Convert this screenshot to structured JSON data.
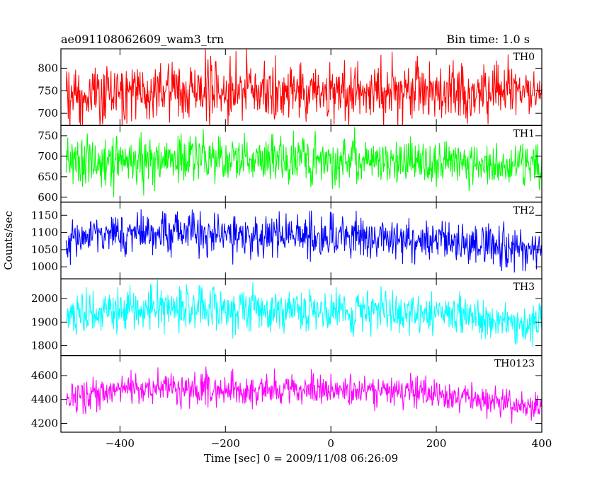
{
  "header": {
    "left": "ae091108062609_wam3_trn",
    "right": "Bin time: 1.0 s"
  },
  "chart_data": {
    "type": "line",
    "xlabel": "Time [sec] 0 = 2009/11/08 06:26:09",
    "ylabel": "Counts/sec",
    "xlim": [
      -512,
      400
    ],
    "xticks": [
      -400,
      -200,
      0,
      200,
      400
    ],
    "xtick_labels": [
      "−400",
      "−200",
      "0",
      "200",
      "400"
    ],
    "x_start": -502,
    "x_end": 400,
    "bin_time_s": 1.0,
    "panels": [
      {
        "name": "TH0",
        "color": "#ff0000",
        "ylim": [
          673,
          843
        ],
        "yticks": [
          700,
          750,
          800
        ],
        "series_x": [
          -500,
          -400,
          -300,
          -200,
          -100,
          0,
          100,
          200,
          300,
          400
        ],
        "series_mean": [
          740,
          748,
          752,
          748,
          750,
          748,
          752,
          750,
          748,
          740
        ],
        "series_spread": [
          32,
          35,
          35,
          33,
          34,
          34,
          35,
          33,
          33,
          30
        ]
      },
      {
        "name": "TH1",
        "color": "#00ff00",
        "ylim": [
          588,
          775
        ],
        "yticks": [
          600,
          650,
          700,
          750
        ],
        "series_x": [
          -500,
          -400,
          -300,
          -200,
          -100,
          0,
          100,
          200,
          300,
          400
        ],
        "series_mean": [
          685,
          692,
          692,
          688,
          690,
          690,
          688,
          686,
          682,
          675
        ],
        "series_spread": [
          30,
          32,
          32,
          30,
          31,
          31,
          30,
          30,
          29,
          28
        ]
      },
      {
        "name": "TH2",
        "color": "#0000ff",
        "ylim": [
          965,
          1188
        ],
        "yticks": [
          1000,
          1050,
          1100,
          1150
        ],
        "series_x": [
          -500,
          -400,
          -300,
          -200,
          -100,
          0,
          100,
          200,
          300,
          400
        ],
        "series_mean": [
          1075,
          1095,
          1098,
          1093,
          1090,
          1088,
          1080,
          1075,
          1060,
          1045
        ],
        "series_spread": [
          30,
          32,
          32,
          31,
          31,
          31,
          30,
          30,
          30,
          28
        ]
      },
      {
        "name": "TH3",
        "color": "#00ffff",
        "ylim": [
          1758,
          2084
        ],
        "yticks": [
          1800,
          1900,
          2000
        ],
        "series_x": [
          -500,
          -400,
          -300,
          -200,
          -100,
          0,
          100,
          200,
          300,
          400
        ],
        "series_mean": [
          1920,
          1950,
          1958,
          1955,
          1950,
          1948,
          1940,
          1935,
          1910,
          1885
        ],
        "series_spread": [
          45,
          48,
          48,
          46,
          46,
          46,
          45,
          44,
          43,
          42
        ]
      },
      {
        "name": "TH0123",
        "color": "#ff00ff",
        "ylim": [
          4126,
          4768
        ],
        "yticks": [
          4200,
          4400,
          4600
        ],
        "series_x": [
          -500,
          -400,
          -300,
          -200,
          -100,
          0,
          100,
          200,
          300,
          400
        ],
        "series_mean": [
          4420,
          4480,
          4500,
          4490,
          4490,
          4485,
          4470,
          4450,
          4380,
          4340
        ],
        "series_spread": [
          70,
          75,
          75,
          72,
          72,
          72,
          70,
          70,
          68,
          65
        ]
      }
    ]
  }
}
